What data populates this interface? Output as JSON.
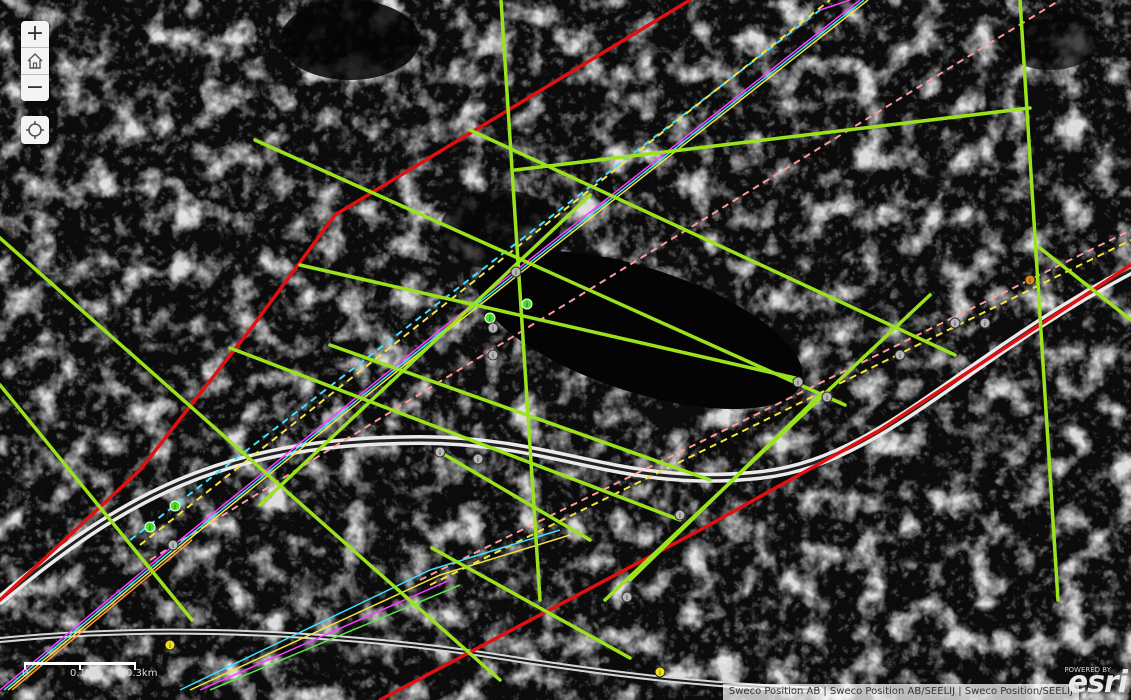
{
  "map": {
    "basemap": "hillshade-terrain",
    "colors": {
      "background": "#0b0b0b",
      "terrain": "#e6e6e6",
      "cross_section_lines": "#9be21e",
      "route_line": "#e01010",
      "dashed_cyan": "#3fe0ff",
      "dashed_yellow": "#f5e23a",
      "dashed_pink": "#ff9a9a",
      "info_marker": "#f2e21a",
      "green_marker": "#4ae02a",
      "gray_marker": "#b8b8b8",
      "orange_marker": "#d98a1a"
    }
  },
  "controls": {
    "zoom_in": "+",
    "home_icon": "home-icon",
    "zoom_out": "−",
    "locate_icon": "locate-icon"
  },
  "scalebar": {
    "labels": [
      "0",
      "0.15",
      "0.3km"
    ]
  },
  "markers": {
    "info_symbol": "i",
    "green_symbol": "i",
    "gray_symbol": "i"
  },
  "attribution": {
    "text": "Sweco Position AB | Sweco Position AB/SEELIJ | Sweco Position/SEELIJ"
  },
  "branding": {
    "logo": "esri",
    "powered_by": "POWERED BY"
  }
}
